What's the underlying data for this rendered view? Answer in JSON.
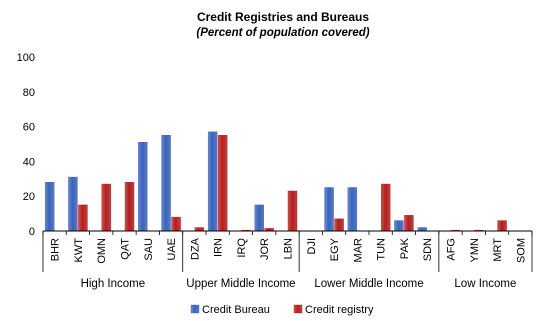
{
  "chart_data": {
    "type": "bar",
    "title": "Credit Registries and Bureaus",
    "subtitle": "(Percent of population covered)",
    "categories": [
      "BHR",
      "KWT",
      "OMN",
      "QAT",
      "SAU",
      "UAE",
      "DZA",
      "IRN",
      "IRQ",
      "JOR",
      "LBN",
      "DJI",
      "EGY",
      "MAR",
      "TUN",
      "PAK",
      "SDN",
      "AFG",
      "YMN",
      "MRT",
      "SOM"
    ],
    "groups": [
      {
        "label": "High Income",
        "count": 6
      },
      {
        "label": "Upper Middle Income",
        "count": 5
      },
      {
        "label": "Lower Middle Income",
        "count": 6
      },
      {
        "label": "Low Income",
        "count": 4
      }
    ],
    "series": [
      {
        "name": "Credit Bureau",
        "color": "#3a63b8",
        "values": [
          28,
          31,
          0,
          0,
          51,
          55,
          0,
          57,
          0,
          15,
          0,
          0,
          25,
          25,
          0,
          6,
          2,
          0,
          0,
          0,
          0
        ]
      },
      {
        "name": "Credit registry",
        "color": "#b51d1d",
        "values": [
          0,
          15,
          27,
          28,
          0,
          8,
          2,
          55,
          0.5,
          1.5,
          23,
          0,
          7,
          0,
          27,
          9,
          0,
          0.5,
          0.5,
          6,
          0
        ]
      }
    ],
    "y_ticks": [
      "0",
      "20",
      "40",
      "60",
      "80",
      "100"
    ],
    "ylim": [
      0,
      100
    ],
    "legend_position": "bottom",
    "grid": false
  }
}
